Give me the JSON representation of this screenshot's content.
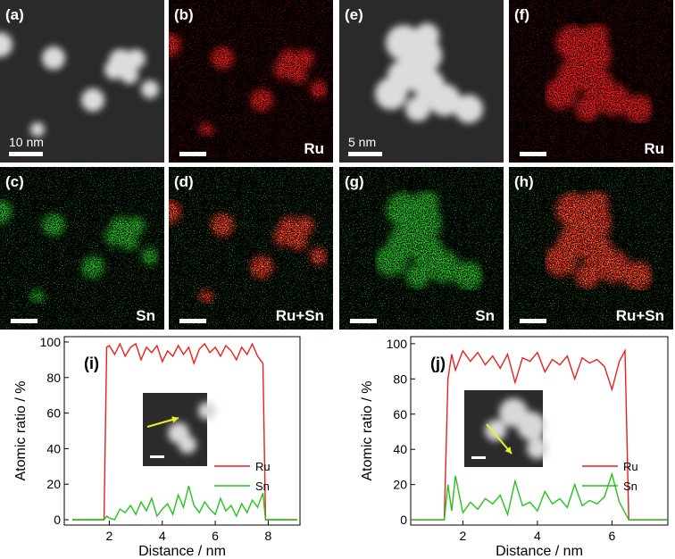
{
  "panels": [
    {
      "label": "(a)",
      "scale": "10 nm"
    },
    {
      "label": "(b)",
      "element": "Ru"
    },
    {
      "label": "(c)",
      "element": "Sn"
    },
    {
      "label": "(d)",
      "element": "Ru+Sn"
    },
    {
      "label": "(e)",
      "scale": "5 nm"
    },
    {
      "label": "(f)",
      "element": "Ru"
    },
    {
      "label": "(g)",
      "element": "Sn"
    },
    {
      "label": "(h)",
      "element": "Ru+Sn"
    }
  ],
  "chart_data": [
    {
      "type": "line",
      "label": "(i)",
      "x_label": "Distance / nm",
      "y_label": "Atomic ratio / %",
      "x": [
        0.6,
        1.2,
        1.8,
        1.9,
        2.0,
        2.2,
        2.4,
        2.6,
        2.8,
        3.0,
        3.2,
        3.4,
        3.6,
        3.8,
        4.0,
        4.2,
        4.4,
        4.6,
        4.8,
        5.0,
        5.2,
        5.4,
        5.6,
        5.8,
        6.0,
        6.2,
        6.4,
        6.6,
        6.8,
        7.0,
        7.2,
        7.4,
        7.6,
        7.8,
        7.9,
        8.0,
        8.6,
        9.1
      ],
      "series": [
        {
          "name": "Ru",
          "color": "#e8201c",
          "values": [
            0,
            0,
            0,
            97,
            98,
            93,
            99,
            92,
            97,
            99,
            90,
            97,
            94,
            98,
            89,
            95,
            92,
            98,
            93,
            97,
            88,
            96,
            99,
            94,
            97,
            92,
            98,
            95,
            90,
            97,
            93,
            99,
            92,
            88,
            0,
            0,
            0,
            0
          ]
        },
        {
          "name": "Sn",
          "color": "#22c41c",
          "values": [
            0,
            0,
            0,
            2,
            1,
            0,
            6,
            4,
            8,
            3,
            10,
            5,
            12,
            2,
            6,
            9,
            3,
            14,
            7,
            19,
            8,
            4,
            10,
            6,
            3,
            12,
            5,
            8,
            2,
            9,
            4,
            11,
            7,
            15,
            0,
            0,
            0,
            0
          ]
        }
      ],
      "xlim": [
        0.3,
        9.2
      ],
      "ylim": [
        -3,
        103
      ],
      "xticks": [
        2,
        4,
        6,
        8
      ],
      "yticks": [
        0,
        20,
        40,
        60,
        80,
        100
      ],
      "legend": "lower right"
    },
    {
      "type": "line",
      "label": "(j)",
      "x_label": "Distance / nm",
      "y_label": "Atomic ratio / %",
      "x": [
        0.6,
        1.1,
        1.5,
        1.6,
        1.7,
        1.8,
        2.0,
        2.2,
        2.4,
        2.6,
        2.8,
        3.0,
        3.2,
        3.4,
        3.6,
        3.8,
        4.0,
        4.2,
        4.4,
        4.6,
        4.8,
        5.0,
        5.2,
        5.4,
        5.6,
        5.8,
        6.0,
        6.2,
        6.35,
        6.45,
        7.0,
        7.5
      ],
      "series": [
        {
          "name": "Ru",
          "color": "#e8201c",
          "values": [
            0,
            0,
            0,
            80,
            94,
            85,
            96,
            90,
            95,
            88,
            93,
            86,
            94,
            78,
            92,
            90,
            95,
            84,
            91,
            88,
            93,
            80,
            92,
            89,
            91,
            87,
            74,
            90,
            96,
            0,
            0,
            0
          ]
        },
        {
          "name": "Sn",
          "color": "#22c41c",
          "values": [
            0,
            0,
            0,
            20,
            5,
            25,
            4,
            10,
            6,
            12,
            9,
            14,
            3,
            22,
            8,
            10,
            5,
            16,
            9,
            12,
            7,
            20,
            8,
            11,
            9,
            13,
            26,
            10,
            4,
            0,
            0,
            0
          ]
        }
      ],
      "xlim": [
        0.6,
        7.5
      ],
      "ylim": [
        -3,
        104
      ],
      "xticks": [
        2,
        4,
        6
      ],
      "yticks": [
        0,
        20,
        40,
        60,
        80,
        100
      ],
      "legend": "lower right"
    }
  ]
}
